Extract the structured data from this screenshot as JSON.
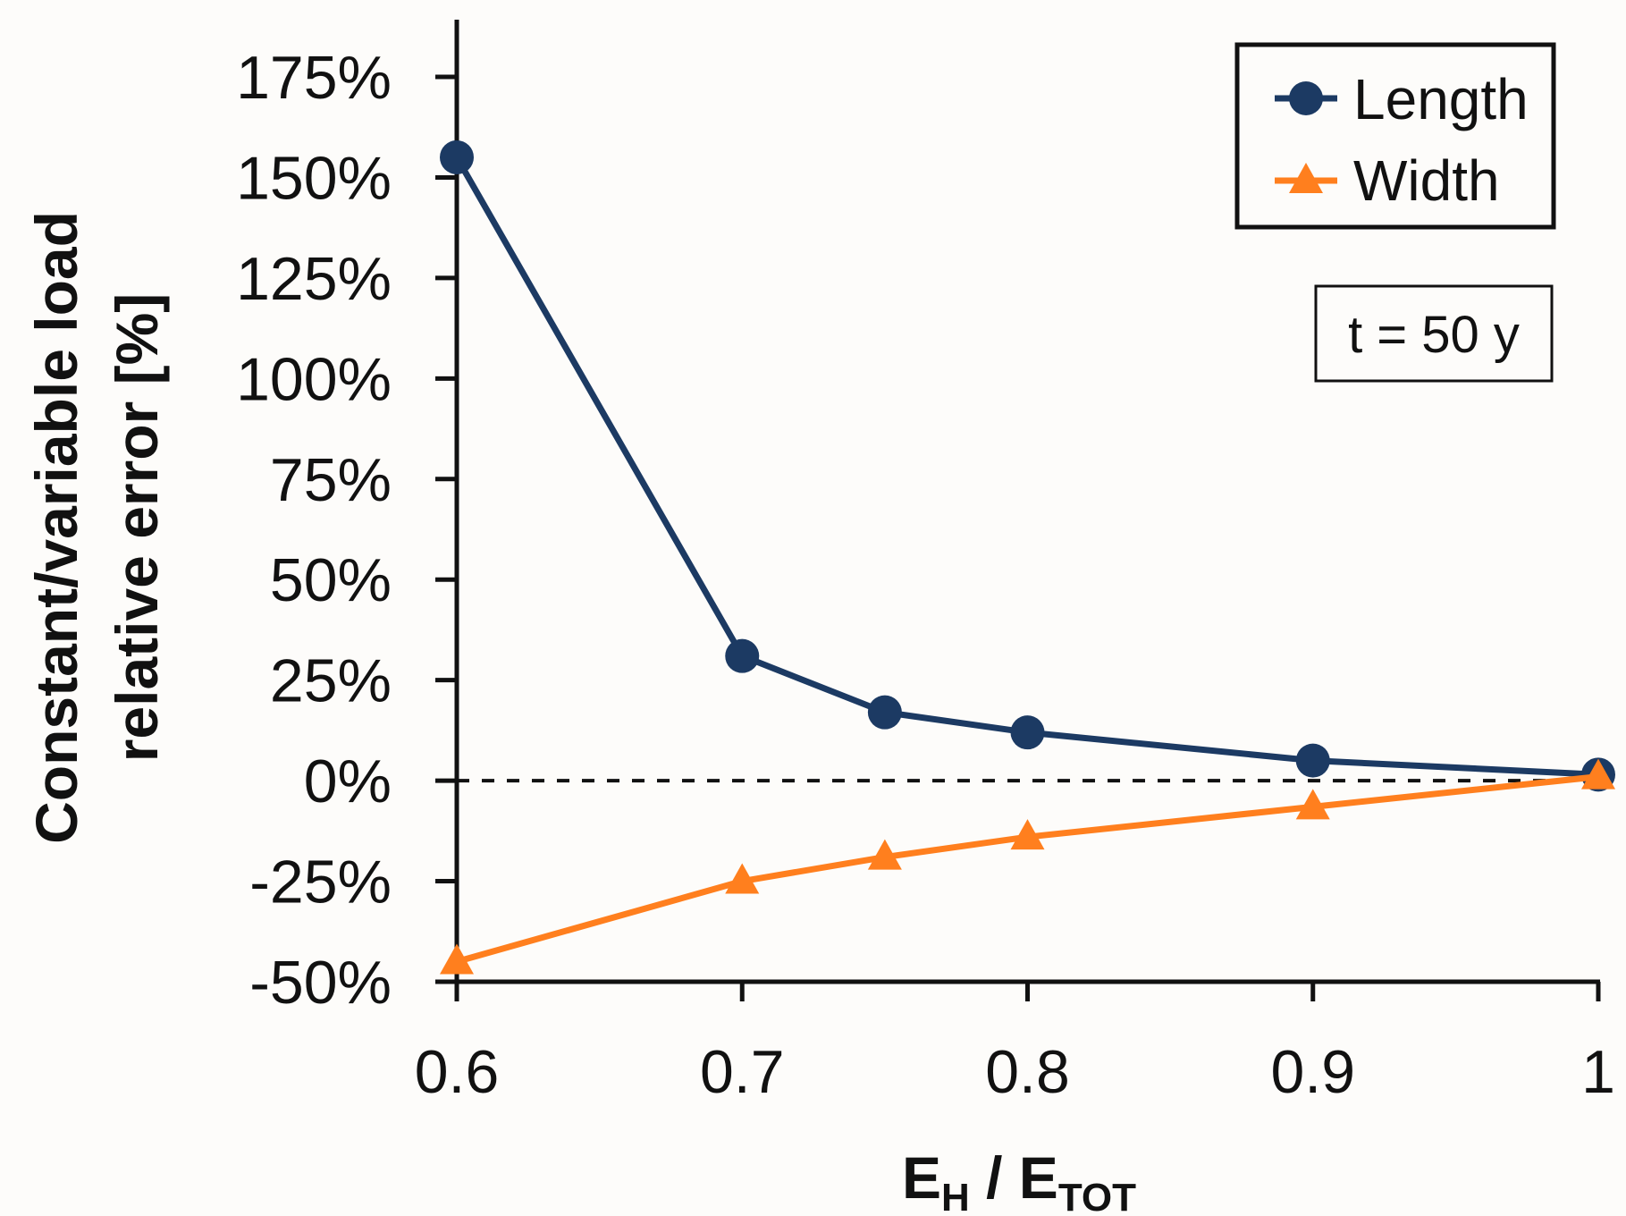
{
  "chart_data": {
    "type": "line",
    "x": [
      0.6,
      0.7,
      0.75,
      0.8,
      0.9,
      1.0
    ],
    "series": [
      {
        "name": "Length",
        "color": "#1c3a63",
        "marker": "circle",
        "values": [
          155,
          31,
          17,
          12,
          5,
          1.5
        ]
      },
      {
        "name": "Width",
        "color": "#ff7f1e",
        "marker": "triangle",
        "values": [
          -45,
          -25,
          -19,
          -14,
          -6.5,
          1
        ]
      }
    ],
    "xticks": [
      0.6,
      0.7,
      0.8,
      0.9,
      1
    ],
    "xtick_labels": [
      "0.6",
      "0.7",
      "0.8",
      "0.9",
      "1"
    ],
    "yticks": [
      -50,
      -25,
      0,
      25,
      50,
      75,
      100,
      125,
      150,
      175
    ],
    "ytick_labels": [
      "-50%",
      "-25%",
      "0%",
      "25%",
      "50%",
      "75%",
      "100%",
      "125%",
      "150%",
      "175%"
    ],
    "xlim": [
      0.6,
      1.0
    ],
    "ylim": [
      -50,
      190
    ],
    "xlabel": {
      "base1": "E",
      "sub1": "H",
      "sep": " / ",
      "base2": "E",
      "sub2": "TOT"
    },
    "ylabel_line1": "Constant/variable load",
    "ylabel_line2": "relative error [%]",
    "reference_line": {
      "y": 0,
      "style": "dashed"
    },
    "legend_position": "top-right",
    "annotation": "t = 50 y"
  }
}
